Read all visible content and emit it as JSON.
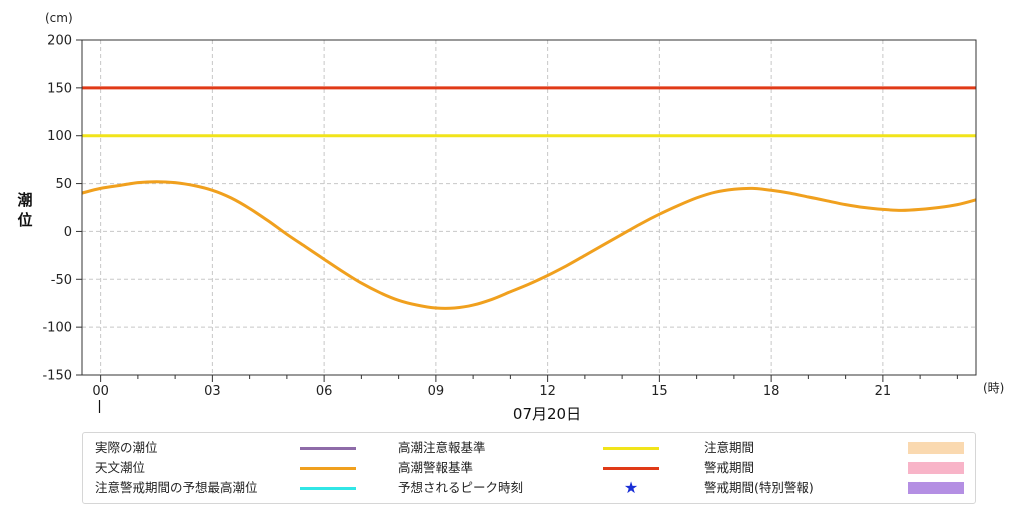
{
  "chart_data": {
    "type": "line",
    "ylabel": "潮位",
    "yunit": "(cm)",
    "xunit": "(時)",
    "date_label": "07月20日",
    "ylim": [
      -150,
      200
    ],
    "yticks": [
      200,
      150,
      100,
      50,
      0,
      -50,
      -100,
      -150
    ],
    "xlim": [
      -0.5,
      23.5
    ],
    "xticks": [
      {
        "h": 0,
        "label": "00"
      },
      {
        "h": 3,
        "label": "03"
      },
      {
        "h": 6,
        "label": "06"
      },
      {
        "h": 9,
        "label": "09"
      },
      {
        "h": 12,
        "label": "12"
      },
      {
        "h": 15,
        "label": "15"
      },
      {
        "h": 18,
        "label": "18"
      },
      {
        "h": 21,
        "label": "21"
      }
    ],
    "grid": true,
    "thresholds": [
      {
        "name": "高潮警報基準",
        "value": 150,
        "color": "#e03a17"
      },
      {
        "name": "高潮注意報基準",
        "value": 100,
        "color": "#f1e41a"
      }
    ],
    "series": [
      {
        "name": "天文潮位",
        "color": "#f0a01e",
        "x": [
          -0.5,
          0,
          0.5,
          1,
          1.5,
          2,
          2.5,
          3,
          3.5,
          4,
          4.5,
          5,
          5.5,
          6,
          6.5,
          7,
          7.5,
          8,
          8.5,
          9,
          9.5,
          10,
          10.5,
          11,
          11.5,
          12,
          12.5,
          13,
          13.5,
          14,
          14.5,
          15,
          15.5,
          16,
          16.5,
          17,
          17.5,
          18,
          18.5,
          19,
          19.5,
          20,
          20.5,
          21,
          21.5,
          22,
          22.5,
          23,
          23.5
        ],
        "y": [
          40,
          45,
          48,
          51,
          52,
          51,
          48,
          43,
          35,
          24,
          11,
          -3,
          -16,
          -29,
          -42,
          -54,
          -64,
          -72,
          -77,
          -80,
          -80,
          -77,
          -71,
          -63,
          -55,
          -46,
          -36,
          -25,
          -14,
          -3,
          8,
          18,
          27,
          35,
          41,
          44,
          45,
          43,
          40,
          36,
          32,
          28,
          25,
          23,
          22,
          23,
          25,
          28,
          33
        ]
      }
    ]
  },
  "legend": {
    "items": [
      {
        "label": "実際の潮位",
        "type": "line",
        "color": "#8e6ba8"
      },
      {
        "label": "天文潮位",
        "type": "line",
        "color": "#f0a01e"
      },
      {
        "label": "注意警戒期間の予想最高潮位",
        "type": "line",
        "color": "#31e6e6"
      },
      {
        "label": "高潮注意報基準",
        "type": "line",
        "color": "#f1e41a"
      },
      {
        "label": "高潮警報基準",
        "type": "line",
        "color": "#e03a17"
      },
      {
        "label": "予想されるピーク時刻",
        "type": "star",
        "color": "#1a2fd6",
        "symbol": "★"
      },
      {
        "label": "注意期間",
        "type": "rect",
        "color": "#fad9b0"
      },
      {
        "label": "警戒期間",
        "type": "rect",
        "color": "#f8b4c8"
      },
      {
        "label": "警戒期間(特別警報)",
        "type": "rect",
        "color": "#b48fe3"
      }
    ]
  }
}
